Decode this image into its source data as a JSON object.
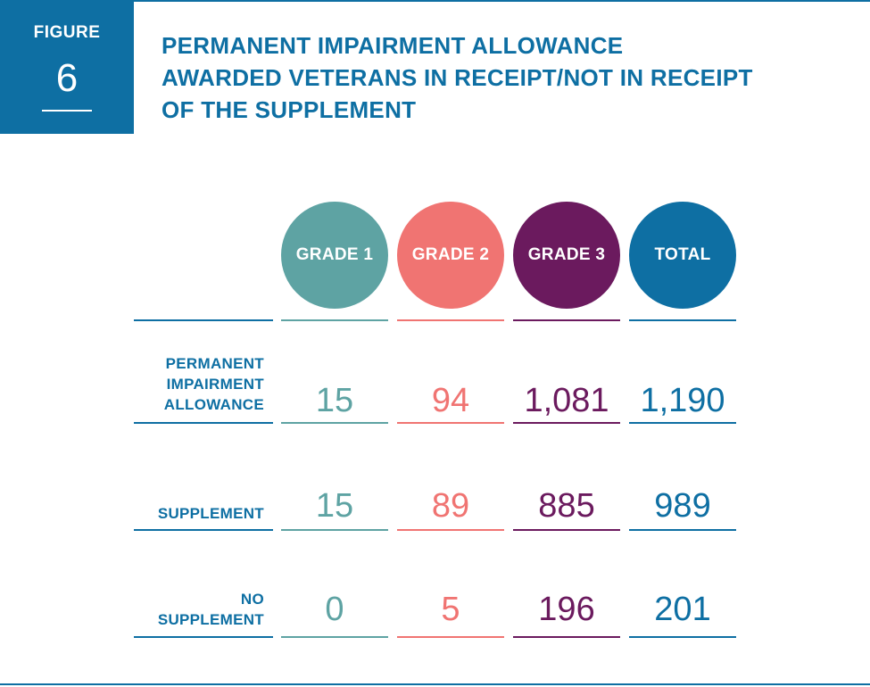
{
  "figure": {
    "label": "FIGURE",
    "number": "6"
  },
  "title_lines": [
    "PERMANENT IMPAIRMENT ALLOWANCE",
    "AWARDED VETERANS IN RECEIPT/NOT IN RECEIPT",
    "OF THE SUPPLEMENT"
  ],
  "colors": {
    "brand": "#0e6fa3",
    "grade1": "#5ea3a3",
    "grade2": "#f07472",
    "grade3": "#6b1a5e",
    "total": "#0e6fa3"
  },
  "chart_data": {
    "type": "table",
    "title": "PERMANENT IMPAIRMENT ALLOWANCE AWARDED VETERANS IN RECEIPT/NOT IN RECEIPT OF THE SUPPLEMENT",
    "columns": [
      "GRADE 1",
      "GRADE 2",
      "GRADE 3",
      "TOTAL"
    ],
    "rows": [
      {
        "label_lines": [
          "PERMANENT",
          "IMPAIRMENT",
          "ALLOWANCE"
        ],
        "values": [
          "15",
          "94",
          "1,081",
          "1,190"
        ]
      },
      {
        "label_lines": [
          "SUPPLEMENT"
        ],
        "values": [
          "15",
          "89",
          "885",
          "989"
        ]
      },
      {
        "label_lines": [
          "NO",
          "SUPPLEMENT"
        ],
        "values": [
          "0",
          "5",
          "196",
          "201"
        ]
      }
    ]
  }
}
